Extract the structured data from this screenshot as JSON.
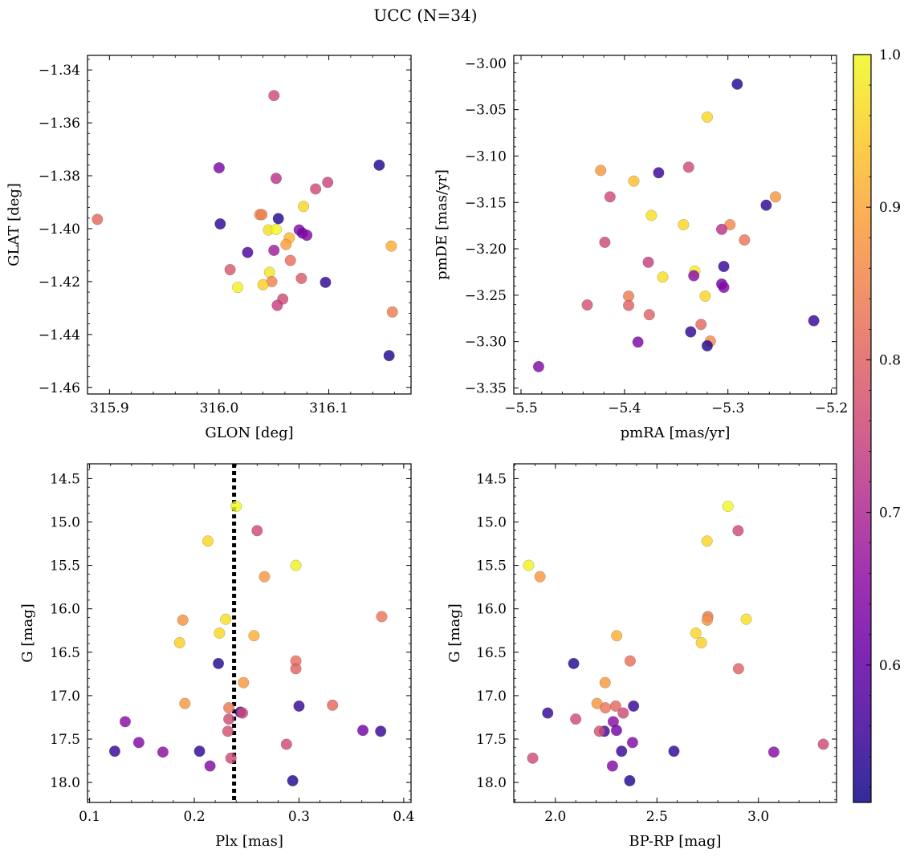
{
  "figure": {
    "title": "UCC (N=34)"
  },
  "colorbar": {
    "colormap": "plasma",
    "range": [
      0.51,
      1.0
    ],
    "ticks": [
      0.6,
      0.7,
      0.8,
      0.9,
      1.0
    ],
    "tick_labels": [
      "0.6",
      "0.7",
      "0.8",
      "0.9",
      "1.0"
    ]
  },
  "chart_data": [
    {
      "type": "scatter",
      "panel": "top-left",
      "xlabel": "GLON [deg]",
      "ylabel": "GLAT [deg]",
      "xlim": [
        315.88,
        316.175
      ],
      "ylim": [
        -1.4625,
        -1.3345
      ],
      "xticks": [
        315.9,
        316.0,
        316.1
      ],
      "xtick_labels": [
        "315.9",
        "316.0",
        "316.1"
      ],
      "yticks": [
        -1.34,
        -1.36,
        -1.38,
        -1.4,
        -1.42,
        -1.44,
        -1.46
      ],
      "ytick_labels": [
        "−1.34",
        "−1.36",
        "−1.38",
        "−1.40",
        "−1.42",
        "−1.44",
        "−1.46"
      ],
      "points": [
        {
          "x": 316.05,
          "y": -1.3497,
          "c": 0.76
        },
        {
          "x": 316.146,
          "y": -1.376,
          "c": 0.53
        },
        {
          "x": 316.0,
          "y": -1.377,
          "c": 0.63
        },
        {
          "x": 316.052,
          "y": -1.381,
          "c": 0.72
        },
        {
          "x": 316.088,
          "y": -1.385,
          "c": 0.76
        },
        {
          "x": 316.099,
          "y": -1.3825,
          "c": 0.75
        },
        {
          "x": 316.077,
          "y": -1.3916,
          "c": 0.96
        },
        {
          "x": 315.889,
          "y": -1.3965,
          "c": 0.81
        },
        {
          "x": 316.001,
          "y": -1.3982,
          "c": 0.54
        },
        {
          "x": 316.037,
          "y": -1.3947,
          "c": 0.86
        },
        {
          "x": 316.039,
          "y": -1.3947,
          "c": 0.84
        },
        {
          "x": 316.054,
          "y": -1.3962,
          "c": 0.53
        },
        {
          "x": 316.045,
          "y": -1.4005,
          "c": 0.97
        },
        {
          "x": 316.052,
          "y": -1.4003,
          "c": 1.0
        },
        {
          "x": 316.073,
          "y": -1.4005,
          "c": 0.64
        },
        {
          "x": 316.076,
          "y": -1.4017,
          "c": 0.62
        },
        {
          "x": 316.08,
          "y": -1.4025,
          "c": 0.64
        },
        {
          "x": 316.064,
          "y": -1.4035,
          "c": 0.92
        },
        {
          "x": 316.061,
          "y": -1.406,
          "c": 0.89
        },
        {
          "x": 316.157,
          "y": -1.4066,
          "c": 0.91
        },
        {
          "x": 316.026,
          "y": -1.409,
          "c": 0.57
        },
        {
          "x": 316.05,
          "y": -1.4082,
          "c": 0.68
        },
        {
          "x": 316.065,
          "y": -1.412,
          "c": 0.82
        },
        {
          "x": 316.01,
          "y": -1.4155,
          "c": 0.78
        },
        {
          "x": 316.046,
          "y": -1.4165,
          "c": 0.98
        },
        {
          "x": 316.075,
          "y": -1.4188,
          "c": 0.79
        },
        {
          "x": 316.048,
          "y": -1.42,
          "c": 0.85
        },
        {
          "x": 316.097,
          "y": -1.4203,
          "c": 0.54
        },
        {
          "x": 316.017,
          "y": -1.4222,
          "c": 0.99
        },
        {
          "x": 316.04,
          "y": -1.4212,
          "c": 0.95
        },
        {
          "x": 316.058,
          "y": -1.4266,
          "c": 0.76
        },
        {
          "x": 316.053,
          "y": -1.429,
          "c": 0.74
        },
        {
          "x": 316.158,
          "y": -1.4315,
          "c": 0.84
        },
        {
          "x": 316.155,
          "y": -1.448,
          "c": 0.53
        }
      ]
    },
    {
      "type": "scatter",
      "panel": "top-right",
      "xlabel": "pmRA [mas/yr]",
      "ylabel": "pmDE [mas/yr]",
      "xlim": [
        -5.507,
        -5.195
      ],
      "ylim": [
        -3.3565,
        -2.9915
      ],
      "xticks": [
        -5.5,
        -5.4,
        -5.3,
        -5.2
      ],
      "xtick_labels": [
        "−5.5",
        "−5.4",
        "−5.3",
        "−5.2"
      ],
      "yticks": [
        -3.0,
        -3.05,
        -3.1,
        -3.15,
        -3.2,
        -3.25,
        -3.3,
        -3.35
      ],
      "ytick_labels": [
        "−3.00",
        "−3.05",
        "−3.10",
        "−3.15",
        "−3.20",
        "−3.25",
        "−3.30",
        "−3.35"
      ],
      "points": [
        {
          "x": -5.291,
          "y": -3.0225,
          "c": 0.53
        },
        {
          "x": -5.32,
          "y": -3.058,
          "c": 0.96
        },
        {
          "x": -5.338,
          "y": -3.112,
          "c": 0.76
        },
        {
          "x": -5.423,
          "y": -3.1155,
          "c": 0.88
        },
        {
          "x": -5.367,
          "y": -3.118,
          "c": 0.55
        },
        {
          "x": -5.391,
          "y": -3.127,
          "c": 0.93
        },
        {
          "x": -5.414,
          "y": -3.144,
          "c": 0.76
        },
        {
          "x": -5.254,
          "y": -3.144,
          "c": 0.88
        },
        {
          "x": -5.263,
          "y": -3.153,
          "c": 0.54
        },
        {
          "x": -5.374,
          "y": -3.164,
          "c": 0.97
        },
        {
          "x": -5.343,
          "y": -3.174,
          "c": 0.96
        },
        {
          "x": -5.298,
          "y": -3.174,
          "c": 0.86
        },
        {
          "x": -5.306,
          "y": -3.179,
          "c": 0.72
        },
        {
          "x": -5.284,
          "y": -3.1905,
          "c": 0.83
        },
        {
          "x": -5.419,
          "y": -3.193,
          "c": 0.76
        },
        {
          "x": -5.377,
          "y": -3.2145,
          "c": 0.74
        },
        {
          "x": -5.304,
          "y": -3.219,
          "c": 0.55
        },
        {
          "x": -5.332,
          "y": -3.224,
          "c": 0.99
        },
        {
          "x": -5.333,
          "y": -3.229,
          "c": 0.65
        },
        {
          "x": -5.363,
          "y": -3.2305,
          "c": 0.97
        },
        {
          "x": -5.306,
          "y": -3.238,
          "c": 0.62
        },
        {
          "x": -5.304,
          "y": -3.2415,
          "c": 0.64
        },
        {
          "x": -5.396,
          "y": -3.251,
          "c": 0.84
        },
        {
          "x": -5.322,
          "y": -3.251,
          "c": 0.96
        },
        {
          "x": -5.396,
          "y": -3.261,
          "c": 0.8
        },
        {
          "x": -5.436,
          "y": -3.2605,
          "c": 0.77
        },
        {
          "x": -5.376,
          "y": -3.271,
          "c": 0.8
        },
        {
          "x": -5.217,
          "y": -3.2775,
          "c": 0.55
        },
        {
          "x": -5.326,
          "y": -3.2815,
          "c": 0.81
        },
        {
          "x": -5.336,
          "y": -3.2895,
          "c": 0.54
        },
        {
          "x": -5.387,
          "y": -3.3005,
          "c": 0.63
        },
        {
          "x": -5.317,
          "y": -3.2995,
          "c": 0.86
        },
        {
          "x": -5.32,
          "y": -3.3045,
          "c": 0.53
        },
        {
          "x": -5.483,
          "y": -3.327,
          "c": 0.64
        }
      ]
    },
    {
      "type": "scatter",
      "panel": "bottom-left",
      "xlabel": "Plx [mas]",
      "ylabel": "G [mag]",
      "xlim": [
        0.098,
        0.407
      ],
      "ylim": [
        18.23,
        14.33
      ],
      "xticks": [
        0.1,
        0.2,
        0.3,
        0.4
      ],
      "xtick_labels": [
        "0.1",
        "0.2",
        "0.3",
        "0.4"
      ],
      "yticks": [
        14.5,
        15.0,
        15.5,
        16.0,
        16.5,
        17.0,
        17.5,
        18.0
      ],
      "ytick_labels": [
        "14.5",
        "15.0",
        "15.5",
        "16.0",
        "16.5",
        "17.0",
        "17.5",
        "18.0"
      ],
      "vline": {
        "x": 0.238,
        "style": "dotted",
        "color": "#000000"
      },
      "points": [
        {
          "x": 0.24,
          "y": 14.82,
          "c": 1.0
        },
        {
          "x": 0.26,
          "y": 15.1,
          "c": 0.76
        },
        {
          "x": 0.213,
          "y": 15.22,
          "c": 0.96
        },
        {
          "x": 0.297,
          "y": 15.5,
          "c": 0.99
        },
        {
          "x": 0.267,
          "y": 15.63,
          "c": 0.88
        },
        {
          "x": 0.379,
          "y": 16.09,
          "c": 0.83
        },
        {
          "x": 0.23,
          "y": 16.12,
          "c": 0.97
        },
        {
          "x": 0.189,
          "y": 16.13,
          "c": 0.87
        },
        {
          "x": 0.224,
          "y": 16.28,
          "c": 0.96
        },
        {
          "x": 0.257,
          "y": 16.31,
          "c": 0.91
        },
        {
          "x": 0.186,
          "y": 16.39,
          "c": 0.95
        },
        {
          "x": 0.297,
          "y": 16.6,
          "c": 0.82
        },
        {
          "x": 0.223,
          "y": 16.63,
          "c": 0.53
        },
        {
          "x": 0.297,
          "y": 16.69,
          "c": 0.8
        },
        {
          "x": 0.247,
          "y": 16.85,
          "c": 0.88
        },
        {
          "x": 0.191,
          "y": 17.09,
          "c": 0.88
        },
        {
          "x": 0.332,
          "y": 17.11,
          "c": 0.81
        },
        {
          "x": 0.3,
          "y": 17.12,
          "c": 0.55
        },
        {
          "x": 0.233,
          "y": 17.14,
          "c": 0.83
        },
        {
          "x": 0.244,
          "y": 17.19,
          "c": 0.55
        },
        {
          "x": 0.246,
          "y": 17.2,
          "c": 0.76
        },
        {
          "x": 0.233,
          "y": 17.27,
          "c": 0.76
        },
        {
          "x": 0.134,
          "y": 17.3,
          "c": 0.65
        },
        {
          "x": 0.361,
          "y": 17.4,
          "c": 0.62
        },
        {
          "x": 0.378,
          "y": 17.41,
          "c": 0.55
        },
        {
          "x": 0.232,
          "y": 17.41,
          "c": 0.77
        },
        {
          "x": 0.147,
          "y": 17.54,
          "c": 0.64
        },
        {
          "x": 0.288,
          "y": 17.56,
          "c": 0.76
        },
        {
          "x": 0.124,
          "y": 17.64,
          "c": 0.55
        },
        {
          "x": 0.205,
          "y": 17.64,
          "c": 0.54
        },
        {
          "x": 0.17,
          "y": 17.65,
          "c": 0.65
        },
        {
          "x": 0.235,
          "y": 17.72,
          "c": 0.76
        },
        {
          "x": 0.215,
          "y": 17.81,
          "c": 0.64
        },
        {
          "x": 0.294,
          "y": 17.98,
          "c": 0.53
        }
      ]
    },
    {
      "type": "scatter",
      "panel": "bottom-right",
      "xlabel": "BP-RP [mag]",
      "ylabel": "G [mag]",
      "xlim": [
        1.795,
        3.385
      ],
      "ylim": [
        18.23,
        14.33
      ],
      "xticks": [
        2.0,
        2.5,
        3.0
      ],
      "xtick_labels": [
        "2.0",
        "2.5",
        "3.0"
      ],
      "yticks": [
        14.5,
        15.0,
        15.5,
        16.0,
        16.5,
        17.0,
        17.5,
        18.0
      ],
      "ytick_labels": [
        "14.5",
        "15.0",
        "15.5",
        "16.0",
        "16.5",
        "17.0",
        "17.5",
        "18.0"
      ],
      "points": [
        {
          "x": 2.85,
          "y": 14.82,
          "c": 1.0
        },
        {
          "x": 2.9,
          "y": 15.1,
          "c": 0.76
        },
        {
          "x": 2.747,
          "y": 15.22,
          "c": 0.96
        },
        {
          "x": 1.868,
          "y": 15.5,
          "c": 0.99
        },
        {
          "x": 1.924,
          "y": 15.63,
          "c": 0.88
        },
        {
          "x": 2.751,
          "y": 16.09,
          "c": 0.83
        },
        {
          "x": 2.94,
          "y": 16.12,
          "c": 0.97
        },
        {
          "x": 2.748,
          "y": 16.13,
          "c": 0.87
        },
        {
          "x": 2.692,
          "y": 16.28,
          "c": 0.96
        },
        {
          "x": 2.302,
          "y": 16.31,
          "c": 0.91
        },
        {
          "x": 2.719,
          "y": 16.39,
          "c": 0.95
        },
        {
          "x": 2.368,
          "y": 16.6,
          "c": 0.82
        },
        {
          "x": 2.09,
          "y": 16.63,
          "c": 0.53
        },
        {
          "x": 2.902,
          "y": 16.69,
          "c": 0.8
        },
        {
          "x": 2.245,
          "y": 16.85,
          "c": 0.88
        },
        {
          "x": 2.205,
          "y": 17.09,
          "c": 0.88
        },
        {
          "x": 2.297,
          "y": 17.12,
          "c": 0.81
        },
        {
          "x": 2.385,
          "y": 17.12,
          "c": 0.55
        },
        {
          "x": 2.246,
          "y": 17.14,
          "c": 0.83
        },
        {
          "x": 1.962,
          "y": 17.2,
          "c": 0.55
        },
        {
          "x": 2.334,
          "y": 17.2,
          "c": 0.76
        },
        {
          "x": 2.1,
          "y": 17.27,
          "c": 0.76
        },
        {
          "x": 2.285,
          "y": 17.3,
          "c": 0.65
        },
        {
          "x": 2.301,
          "y": 17.4,
          "c": 0.62
        },
        {
          "x": 2.241,
          "y": 17.41,
          "c": 0.55
        },
        {
          "x": 2.217,
          "y": 17.41,
          "c": 0.77
        },
        {
          "x": 2.38,
          "y": 17.54,
          "c": 0.64
        },
        {
          "x": 3.32,
          "y": 17.56,
          "c": 0.76
        },
        {
          "x": 2.326,
          "y": 17.64,
          "c": 0.55
        },
        {
          "x": 2.584,
          "y": 17.64,
          "c": 0.54
        },
        {
          "x": 3.076,
          "y": 17.65,
          "c": 0.65
        },
        {
          "x": 1.888,
          "y": 17.72,
          "c": 0.76
        },
        {
          "x": 2.281,
          "y": 17.81,
          "c": 0.64
        },
        {
          "x": 2.366,
          "y": 17.98,
          "c": 0.53
        }
      ]
    }
  ]
}
